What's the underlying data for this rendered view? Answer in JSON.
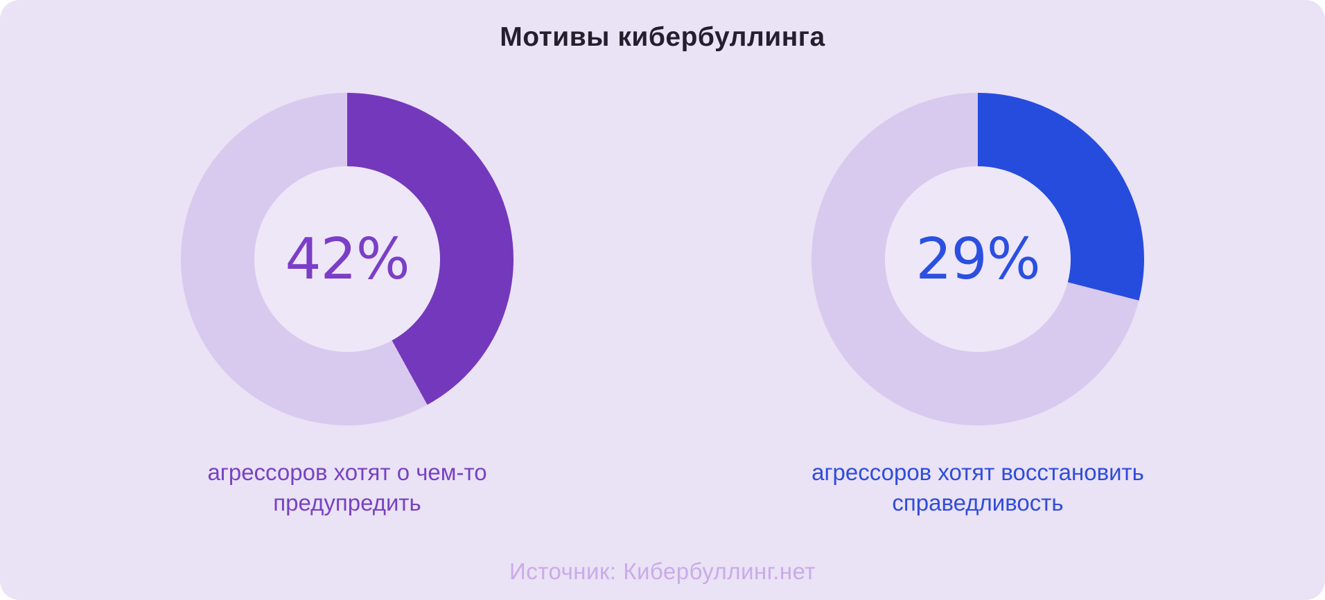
{
  "header": {
    "title": "Мотивы кибербуллинга"
  },
  "footer": {
    "source": "Источник: Кибербуллинг.нет"
  },
  "theme": {
    "canvas_bg": "#EAE2F5",
    "title_color": "#241E2D",
    "source_color": "#C9ABE9"
  },
  "chart_data": [
    {
      "type": "pie",
      "subtype": "donut",
      "value": 42,
      "remainder": 58,
      "unit": "%",
      "center_label": "42%",
      "caption": "агрессоров хотят о чем-то предупредить",
      "start_angle_deg": 0,
      "direction": "clockwise",
      "legend_position": "none",
      "colors": {
        "fill": "#7438BC",
        "track": "#D8CAEE",
        "inner": "#EDE7F8",
        "value_text": "#7B3EC6",
        "caption_text": "#7742C2"
      }
    },
    {
      "type": "pie",
      "subtype": "donut",
      "value": 29,
      "remainder": 71,
      "unit": "%",
      "center_label": "29%",
      "caption": "агрессоров хотят восстановить справедливость",
      "start_angle_deg": 0,
      "direction": "clockwise",
      "legend_position": "none",
      "colors": {
        "fill": "#264CDE",
        "track": "#D8CAEE",
        "inner": "#EDE7F8",
        "value_text": "#2B4FE0",
        "caption_text": "#2F4CDC"
      }
    }
  ]
}
